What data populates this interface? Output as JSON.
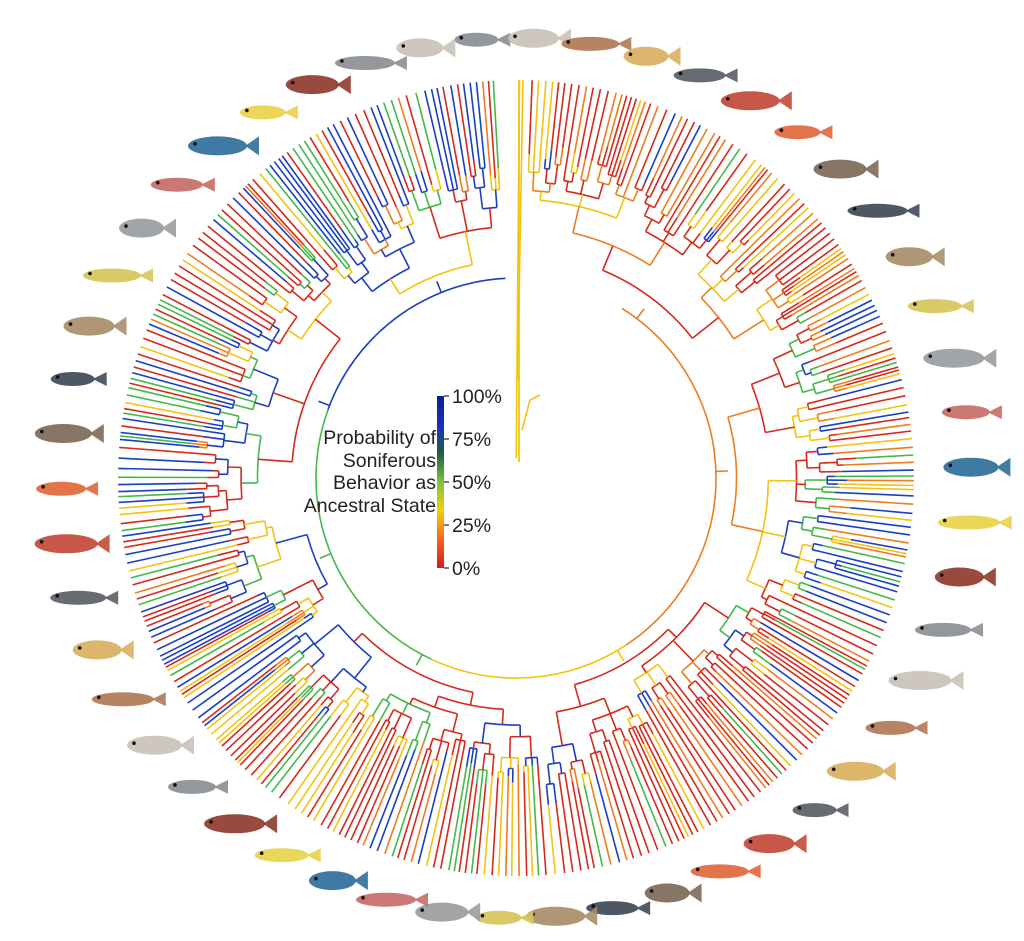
{
  "legend": {
    "title_lines": [
      "Probability of",
      "Soniferous",
      "Behavior as",
      "Ancestral State"
    ],
    "ticks": [
      "100%",
      "75%",
      "50%",
      "25%",
      "0%"
    ],
    "gradient_colors": [
      "#d7191c",
      "#f26522",
      "#f7d000",
      "#7fc241",
      "#1f5f3f",
      "#1c2fbf",
      "#0b1f8c"
    ]
  },
  "branch_colors": {
    "red": "#d42a1e",
    "orange": "#ee7d1f",
    "yellow": "#f2c40f",
    "green": "#44b84a",
    "blue": "#1b3fc2"
  },
  "fish_images": [
    "sturgeon",
    "bonefish",
    "eel",
    "pipe-eel",
    "mooneye",
    "bichir",
    "carp",
    "minnow",
    "chub",
    "sucker",
    "hatchetfish",
    "loach",
    "catfish-striped",
    "catfish-dark",
    "characin",
    "catfish-grey",
    "catfish-spotted",
    "trout",
    "lanternfish",
    "filefish",
    "cusk-eel",
    "squirrelfish",
    "goby-yellow",
    "toadfish",
    "seahorse",
    "goatfish",
    "flatfish",
    "gourami",
    "barracuda",
    "damselfish",
    "scorpionfish",
    "angelfish",
    "parrotfish",
    "perch",
    "sweeper",
    "puffer-dark",
    "pufferfish",
    "triggerfish",
    "surgeonfish",
    "snapper",
    "sweetlips",
    "grunt-pink",
    "moorish-idol",
    "pomfret",
    "grouper-striped",
    "bass",
    "grouper-red",
    "scorpion-red",
    "halfbeak",
    "sculpin"
  ]
}
